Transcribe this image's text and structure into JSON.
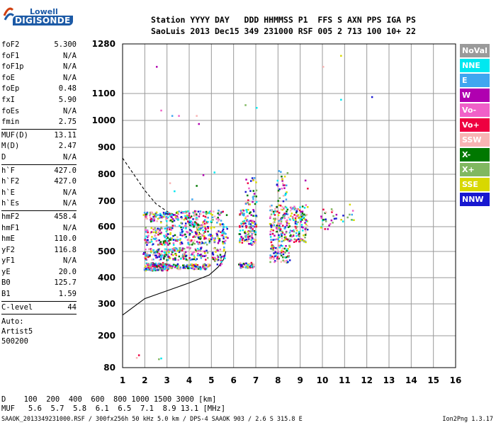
{
  "logo": {
    "top": "Lowell",
    "bottom": "DIGISONDE"
  },
  "header": {
    "line1": "Station YYYY DAY   DDD HHMMSS P1  FFS S AXN PPS IGA PS",
    "line2": "SaoLuis 2013 Dec15 349 231000 RSF 005 2 713 100 10+ 22"
  },
  "params": [
    {
      "key": "foF2",
      "value": "5.300"
    },
    {
      "key": "foF1",
      "value": "N/A"
    },
    {
      "key": "foF1p",
      "value": "N/A"
    },
    {
      "key": "foE",
      "value": "N/A"
    },
    {
      "key": "foEp",
      "value": "0.48"
    },
    {
      "key": "fxI",
      "value": "5.90"
    },
    {
      "key": "foEs",
      "value": "N/A"
    },
    {
      "key": "fmin",
      "value": "2.75"
    },
    {
      "key": "MUF(D)",
      "value": "13.11"
    },
    {
      "key": "M(D)",
      "value": "2.47"
    },
    {
      "key": "D",
      "value": "N/A"
    },
    {
      "key": "h`F",
      "value": "427.0"
    },
    {
      "key": "h`F2",
      "value": "427.0"
    },
    {
      "key": "h`E",
      "value": "N/A"
    },
    {
      "key": "h`Es",
      "value": "N/A"
    },
    {
      "key": "hmF2",
      "value": "458.4"
    },
    {
      "key": "hmF1",
      "value": "N/A"
    },
    {
      "key": "hmE",
      "value": "110.0"
    },
    {
      "key": "yF2",
      "value": "116.8"
    },
    {
      "key": "yF1",
      "value": "N/A"
    },
    {
      "key": "yE",
      "value": "20.0"
    },
    {
      "key": "B0",
      "value": "125.7"
    },
    {
      "key": "B1",
      "value": "1.59"
    },
    {
      "key": "C-level",
      "value": "44"
    }
  ],
  "auto": [
    "Auto:",
    "Artist5",
    "500200"
  ],
  "legend": [
    {
      "label": "NoVal",
      "color": "#9a9a9a"
    },
    {
      "label": "NNE",
      "color": "#00e8f0"
    },
    {
      "label": "E",
      "color": "#3fa6f0"
    },
    {
      "label": "W",
      "color": "#b000b0"
    },
    {
      "label": "Vo-",
      "color": "#f060c8"
    },
    {
      "label": "Vo+",
      "color": "#ee0040"
    },
    {
      "label": "SSW",
      "color": "#f8b4b4"
    },
    {
      "label": "X-",
      "color": "#007800"
    },
    {
      "label": "X+",
      "color": "#80b860"
    },
    {
      "label": "SSE",
      "color": "#d8d800"
    },
    {
      "label": "NNW",
      "color": "#1818d0"
    }
  ],
  "d_line": "D    100  200  400  600  800 1000 1500 3000 [km]",
  "muf_line": "MUF   5.6  5.7  5.8  6.1  6.5  7.1  8.9 13.1 [MHz]",
  "footer": "SAAOK_2013349231000.RSF / 300fx256h 50 kHz 5.0 km / DPS-4 SAAOK 903 / 2.6 S 315.8 E",
  "version": "Ion2Png 1.3.17",
  "chart_data": {
    "type": "scatter",
    "title": "",
    "xlabel": "",
    "ylabel": "",
    "xlim": [
      1,
      16
    ],
    "ylim": [
      80,
      1280
    ],
    "x_ticks": [
      1,
      2,
      3,
      4,
      5,
      6,
      7,
      8,
      9,
      10,
      11,
      12,
      13,
      14,
      15,
      16
    ],
    "y_ticks": [
      80,
      200,
      300,
      400,
      500,
      600,
      700,
      800,
      900,
      1000,
      1100,
      1280
    ],
    "grid": true,
    "legend_placement": "right",
    "clusters": [
      {
        "x0": 1.95,
        "x1": 3.0,
        "y0": 430,
        "y1": 460,
        "n": 140
      },
      {
        "x0": 2.1,
        "x1": 4.9,
        "y0": 435,
        "y1": 455,
        "n": 170
      },
      {
        "x0": 1.9,
        "x1": 3.1,
        "y0": 470,
        "y1": 515,
        "n": 90
      },
      {
        "x0": 3.0,
        "x1": 4.8,
        "y0": 470,
        "y1": 520,
        "n": 120
      },
      {
        "x0": 1.95,
        "x1": 3.0,
        "y0": 530,
        "y1": 600,
        "n": 90
      },
      {
        "x0": 2.9,
        "x1": 4.9,
        "y0": 530,
        "y1": 610,
        "n": 160
      },
      {
        "x0": 1.9,
        "x1": 3.2,
        "y0": 620,
        "y1": 660,
        "n": 90
      },
      {
        "x0": 3.2,
        "x1": 4.8,
        "y0": 610,
        "y1": 665,
        "n": 110
      },
      {
        "x0": 4.8,
        "x1": 5.7,
        "y0": 530,
        "y1": 670,
        "n": 90
      },
      {
        "x0": 5.0,
        "x1": 5.6,
        "y0": 450,
        "y1": 520,
        "n": 40
      },
      {
        "x0": 6.2,
        "x1": 6.9,
        "y0": 440,
        "y1": 460,
        "n": 45
      },
      {
        "x0": 6.2,
        "x1": 7.0,
        "y0": 530,
        "y1": 670,
        "n": 140
      },
      {
        "x0": 6.5,
        "x1": 7.0,
        "y0": 690,
        "y1": 790,
        "n": 30
      },
      {
        "x0": 7.6,
        "x1": 9.3,
        "y0": 540,
        "y1": 690,
        "n": 260
      },
      {
        "x0": 7.6,
        "x1": 8.5,
        "y0": 460,
        "y1": 530,
        "n": 80
      },
      {
        "x0": 7.9,
        "x1": 8.4,
        "y0": 700,
        "y1": 820,
        "n": 30
      },
      {
        "x0": 9.9,
        "x1": 10.6,
        "y0": 590,
        "y1": 680,
        "n": 25
      },
      {
        "x0": 10.8,
        "x1": 11.4,
        "y0": 610,
        "y1": 670,
        "n": 10
      }
    ],
    "points": [
      {
        "x": 1.6,
        "y": 120
      },
      {
        "x": 1.7,
        "y": 130
      },
      {
        "x": 2.6,
        "y": 115
      },
      {
        "x": 2.7,
        "y": 118
      },
      {
        "x": 2.7,
        "y": 1040
      },
      {
        "x": 3.2,
        "y": 1020
      },
      {
        "x": 3.5,
        "y": 1020
      },
      {
        "x": 4.3,
        "y": 1020
      },
      {
        "x": 4.4,
        "y": 990
      },
      {
        "x": 2.5,
        "y": 1200
      },
      {
        "x": 6.5,
        "y": 1060
      },
      {
        "x": 7.0,
        "y": 1050
      },
      {
        "x": 10.0,
        "y": 1200
      },
      {
        "x": 10.8,
        "y": 1240
      },
      {
        "x": 10.8,
        "y": 1080
      },
      {
        "x": 12.2,
        "y": 1090
      },
      {
        "x": 3.1,
        "y": 770
      },
      {
        "x": 3.3,
        "y": 740
      },
      {
        "x": 4.1,
        "y": 710
      },
      {
        "x": 4.3,
        "y": 760
      },
      {
        "x": 4.6,
        "y": 800
      },
      {
        "x": 9.2,
        "y": 780
      },
      {
        "x": 9.3,
        "y": 750
      },
      {
        "x": 11.2,
        "y": 690
      },
      {
        "x": 9.9,
        "y": 600
      },
      {
        "x": 5.1,
        "y": 810
      }
    ],
    "trace_lower": [
      [
        1,
        265
      ],
      [
        2,
        320
      ],
      [
        3,
        350
      ],
      [
        4,
        380
      ],
      [
        4.9,
        410
      ],
      [
        5.3,
        440
      ],
      [
        5.55,
        470
      ],
      [
        5.65,
        500
      ]
    ],
    "trace_upper_dashed": [
      [
        1,
        860
      ],
      [
        1.5,
        800
      ],
      [
        2,
        740
      ],
      [
        2.5,
        690
      ],
      [
        3.0,
        660
      ],
      [
        3.5,
        640
      ],
      [
        4.0,
        625
      ],
      [
        4.3,
        600
      ],
      [
        4.5,
        570
      ],
      [
        4.6,
        530
      ]
    ]
  }
}
